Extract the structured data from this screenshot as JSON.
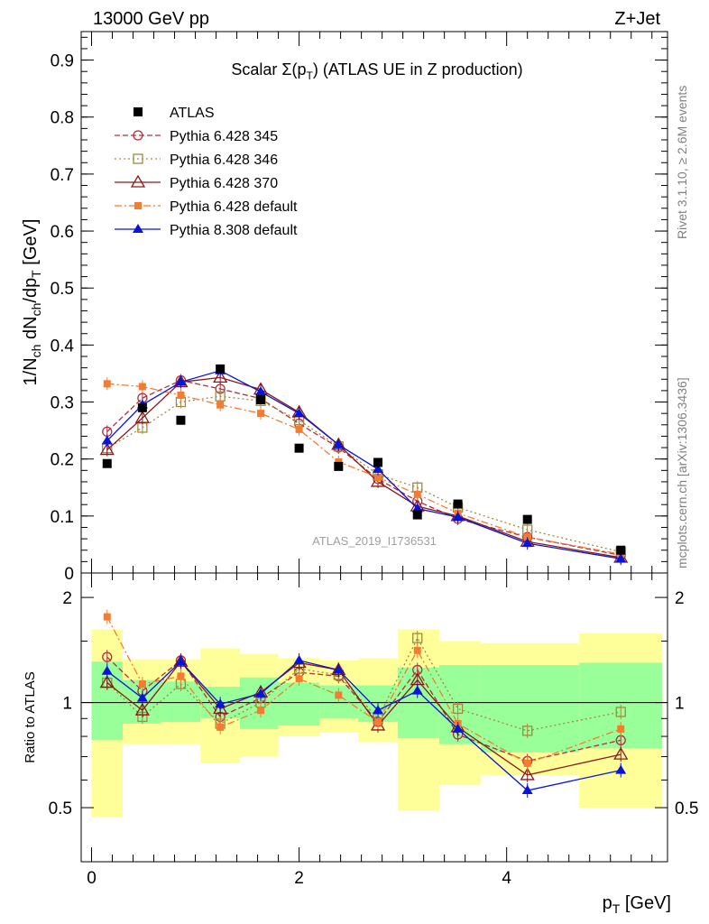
{
  "header": {
    "energy": "13000 GeV pp",
    "process": "Z+Jet"
  },
  "side_labels": {
    "rivet": "Rivet 3.1.10, ≥ 2.6M events",
    "mcplots": "mcplots.cern.ch [arXiv:1306.3436]"
  },
  "watermark": "ATLAS_2019_I1736531",
  "title": {
    "prefix": "Scalar Σ(p",
    "sub": "T",
    "suffix": ") (ATLAS UE in Z production)"
  },
  "ylabel": "1/N_ch dN_ch/dp_T [GeV]",
  "ratio_ylabel": "Ratio to ATLAS",
  "xlabel": "p_T [GeV]",
  "colors": {
    "data": "#000000",
    "p345": "#b03040",
    "p346": "#a08a40",
    "p370": "#8b1a1a",
    "pdef": "#f47c30",
    "p8": "#0a14d8",
    "band_inner": "#99ff99",
    "band_outer": "#ffff99"
  },
  "chart_data": {
    "type": "scatter",
    "x": [
      0.15,
      0.49,
      0.86,
      1.24,
      1.63,
      2.0,
      2.38,
      2.76,
      3.14,
      3.53,
      4.2,
      5.1
    ],
    "x_bins": [
      [
        0.0,
        0.3
      ],
      [
        0.3,
        0.67
      ],
      [
        0.67,
        1.05
      ],
      [
        1.05,
        1.43
      ],
      [
        1.43,
        1.8
      ],
      [
        1.8,
        2.2
      ],
      [
        2.2,
        2.57
      ],
      [
        2.57,
        2.95
      ],
      [
        2.95,
        3.35
      ],
      [
        3.35,
        3.75
      ],
      [
        3.75,
        4.7
      ],
      [
        4.7,
        5.5
      ]
    ],
    "xlim": [
      -0.1,
      5.55
    ],
    "xticks": [
      0,
      2,
      4
    ],
    "ylim_main": [
      0,
      0.95
    ],
    "yticks_main": [
      "0",
      "0.1",
      "0.2",
      "0.3",
      "0.4",
      "0.5",
      "0.6",
      "0.7",
      "0.8",
      "0.9"
    ],
    "ylim_ratio": [
      0.35,
      2.35
    ],
    "yticks_ratio": [
      "0.5",
      "1",
      "2"
    ],
    "data": {
      "name": "ATLAS",
      "values": [
        0.192,
        0.29,
        0.268,
        0.358,
        0.304,
        0.219,
        0.187,
        0.194,
        0.102,
        0.121,
        0.094,
        0.04
      ]
    },
    "series": [
      {
        "name": "Pythia 6.428 345",
        "key": "p345",
        "values": [
          0.248,
          0.307,
          0.338,
          0.323,
          0.306,
          0.262,
          0.22,
          0.165,
          0.126,
          0.095,
          0.063,
          0.031
        ]
      },
      {
        "name": "Pythia 6.428 346",
        "key": "p346",
        "values": [
          0.219,
          0.255,
          0.3,
          0.31,
          0.302,
          0.268,
          0.222,
          0.173,
          0.15,
          0.115,
          0.076,
          0.037
        ]
      },
      {
        "name": "Pythia 6.428 370",
        "key": "p370",
        "values": [
          0.216,
          0.272,
          0.335,
          0.343,
          0.322,
          0.282,
          0.225,
          0.16,
          0.117,
          0.1,
          0.055,
          0.027
        ]
      },
      {
        "name": "Pythia 6.428 default",
        "key": "pdef",
        "values": [
          0.332,
          0.327,
          0.312,
          0.295,
          0.28,
          0.252,
          0.195,
          0.168,
          0.138,
          0.105,
          0.063,
          0.033
        ]
      },
      {
        "name": "Pythia 8.308 default",
        "key": "p8",
        "values": [
          0.232,
          0.295,
          0.335,
          0.355,
          0.318,
          0.28,
          0.225,
          0.182,
          0.113,
          0.098,
          0.052,
          0.025
        ]
      }
    ],
    "ratios": {
      "p345": [
        1.35,
        1.08,
        1.32,
        0.91,
        1.03,
        1.22,
        1.19,
        0.88,
        1.24,
        0.81,
        0.68,
        0.78
      ],
      "p346": [
        1.14,
        0.91,
        1.13,
        0.87,
        1.0,
        1.25,
        1.2,
        0.9,
        1.53,
        0.96,
        0.83,
        0.94
      ],
      "p370": [
        1.14,
        0.95,
        1.31,
        0.96,
        1.07,
        1.3,
        1.24,
        0.86,
        1.16,
        0.85,
        0.62,
        0.71
      ],
      "pdef": [
        1.76,
        1.13,
        1.19,
        0.85,
        0.95,
        1.17,
        1.05,
        0.88,
        1.41,
        0.87,
        0.67,
        0.84
      ],
      "p8": [
        1.23,
        1.03,
        1.31,
        0.99,
        1.06,
        1.32,
        1.24,
        0.95,
        1.08,
        0.84,
        0.56,
        0.64
      ]
    },
    "band_inner": [
      [
        0.78,
        1.31
      ],
      [
        0.87,
        1.16
      ],
      [
        0.88,
        1.15
      ],
      [
        0.9,
        1.11
      ],
      [
        0.84,
        1.18
      ],
      [
        0.86,
        1.14
      ],
      [
        0.9,
        1.12
      ],
      [
        0.88,
        1.12
      ],
      [
        0.79,
        1.26
      ],
      [
        0.76,
        1.28
      ],
      [
        0.72,
        1.28
      ],
      [
        0.74,
        1.3
      ]
    ],
    "band_outer": [
      [
        0.47,
        1.62
      ],
      [
        0.76,
        1.33
      ],
      [
        0.76,
        1.33
      ],
      [
        0.67,
        1.43
      ],
      [
        0.7,
        1.38
      ],
      [
        0.8,
        1.34
      ],
      [
        0.82,
        1.32
      ],
      [
        0.77,
        1.34
      ],
      [
        0.49,
        1.62
      ],
      [
        0.58,
        1.5
      ],
      [
        0.62,
        1.48
      ],
      [
        0.5,
        1.58
      ]
    ]
  }
}
